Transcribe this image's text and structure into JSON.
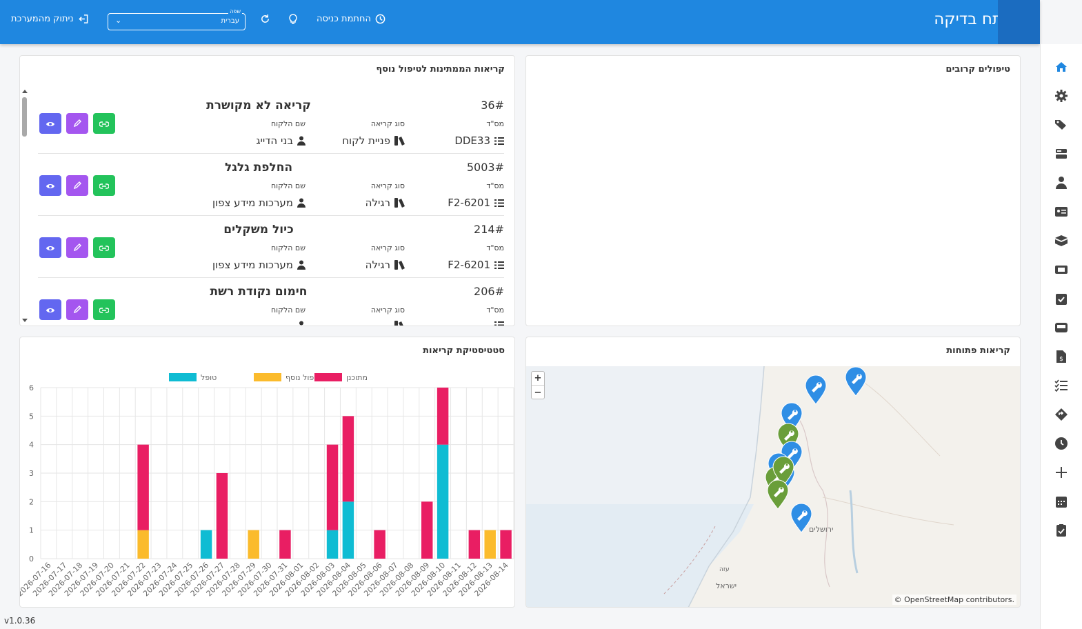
{
  "header": {
    "title": "מפתח בדיקה",
    "clock_in_label": "החתמת כניסה",
    "language_label": "שפה",
    "language_value": "עברית",
    "logout_label": "ניתוק מהמערכת"
  },
  "sidebar": {
    "icons": [
      "home-icon",
      "gear-icon",
      "tags-icon",
      "server-icon",
      "user-tie-icon",
      "id-card-icon",
      "box-icon",
      "ticket-icon",
      "calendar-check-icon",
      "inbox-icon",
      "invoice-icon",
      "list-check-icon",
      "route-icon",
      "clock-icon",
      "plus-icon",
      "calendar-icon",
      "clipboard-check-icon"
    ]
  },
  "upcoming": {
    "title": "טיפולים קרובים"
  },
  "pending": {
    "title": "קריאות הממתינות לטיפול נוסף",
    "labels": {
      "serial": "מס\"ד",
      "type": "סוג קריאה",
      "customer": "שם הלקוח"
    },
    "calls": [
      {
        "number": "36#",
        "title": "קריאה לא מקושרת",
        "serial": "DDE33",
        "type": "פניית לקוח",
        "customer": "בני הדייג"
      },
      {
        "number": "5003#",
        "title": "החלפת גלגל",
        "serial": "6201-F2",
        "type": "רגילה",
        "customer": "מערכות מידע צפון"
      },
      {
        "number": "214#",
        "title": "כיול משקלים",
        "serial": "6201-F2",
        "type": "רגילה",
        "customer": "מערכות מידע צפון"
      },
      {
        "number": "206#",
        "title": "חימום נקודת רשת",
        "serial": "",
        "type": "",
        "customer": ""
      }
    ]
  },
  "open_calls": {
    "title": "קריאות פתוחות",
    "zoom_in": "+",
    "zoom_out": "−",
    "attribution": "© OpenStreetMap contributors.",
    "map_labels": [
      "ירושלים",
      "ישראל",
      "עזה"
    ],
    "colors": {
      "open": "#2f8ee5",
      "done": "#6a9e3a"
    }
  },
  "stats": {
    "title": "סטטיסטיקת קריאות",
    "chart_data": {
      "type": "bar",
      "stacked": true,
      "categories": [
        "2026-07-16",
        "2026-07-17",
        "2026-07-18",
        "2026-07-19",
        "2026-07-20",
        "2026-07-21",
        "2026-07-22",
        "2026-07-23",
        "2026-07-24",
        "2026-07-25",
        "2026-07-26",
        "2026-07-27",
        "2026-07-28",
        "2026-07-29",
        "2026-07-30",
        "2026-07-31",
        "2026-08-01",
        "2026-08-02",
        "2026-08-03",
        "2026-08-04",
        "2026-08-05",
        "2026-08-06",
        "2026-08-07",
        "2026-08-08",
        "2026-08-09",
        "2026-08-10",
        "2026-08-11",
        "2026-08-12",
        "2026-08-13",
        "2026-08-14"
      ],
      "series": [
        {
          "name": "טופל",
          "color": "#0fbcd3",
          "values": [
            0,
            0,
            0,
            0,
            0,
            0,
            0,
            0,
            0,
            0,
            1,
            0,
            0,
            0,
            0,
            0,
            0,
            0,
            1,
            2,
            0,
            0,
            0,
            0,
            0,
            4,
            0,
            0,
            0,
            0
          ]
        },
        {
          "name": "דרוש טיפול נוסף",
          "color": "#fbbb2c",
          "values": [
            0,
            0,
            0,
            0,
            0,
            0,
            1,
            0,
            0,
            0,
            0,
            0,
            0,
            1,
            0,
            0,
            0,
            0,
            0,
            0,
            0,
            0,
            0,
            0,
            0,
            0,
            0,
            0,
            1,
            0
          ]
        },
        {
          "name": "מתוכנן",
          "color": "#e91e63",
          "values": [
            0,
            0,
            0,
            0,
            0,
            0,
            3,
            0,
            0,
            0,
            0,
            3,
            0,
            0,
            0,
            1,
            0,
            0,
            3,
            3,
            0,
            1,
            0,
            0,
            2,
            2,
            0,
            1,
            0,
            1
          ]
        }
      ],
      "ylim": [
        0,
        6
      ],
      "yticks": [
        "0",
        "1",
        "2",
        "3",
        "4",
        "5",
        "6"
      ],
      "grid": true,
      "legend": "top-center"
    }
  },
  "version": "v1.0.36"
}
